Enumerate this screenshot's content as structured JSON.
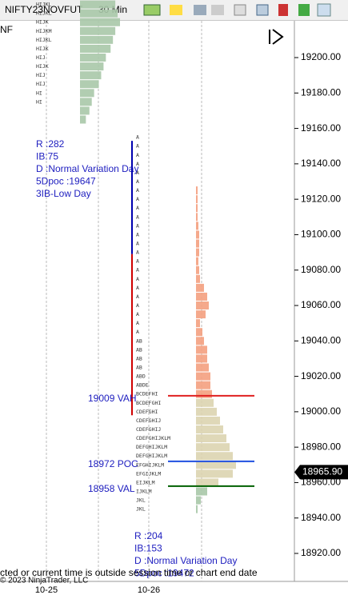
{
  "toolbar": {
    "instrument": "NIFTY23NOVFUT",
    "interval": "30 Min"
  },
  "chart_data": {
    "type": "market-profile",
    "corner_label": "NF",
    "ylim": [
      18900,
      19230
    ],
    "yticks": [
      {
        "value": 19200,
        "label": "19200.00"
      },
      {
        "value": 19180,
        "label": "19180.00"
      },
      {
        "value": 19160,
        "label": "19160.00"
      },
      {
        "value": 19140,
        "label": "19140.00"
      },
      {
        "value": 19120,
        "label": "19120.00"
      },
      {
        "value": 19100,
        "label": "19100.00"
      },
      {
        "value": 19080,
        "label": "19080.00"
      },
      {
        "value": 19060,
        "label": "19060.00"
      },
      {
        "value": 19040,
        "label": "19040.00"
      },
      {
        "value": 19020,
        "label": "19020.00"
      },
      {
        "value": 19000,
        "label": "19000.00"
      },
      {
        "value": 18980,
        "label": "18980.00"
      },
      {
        "value": 18960,
        "label": "18960.00"
      },
      {
        "value": 18940,
        "label": "18940.00"
      },
      {
        "value": 18920,
        "label": "18920.00"
      }
    ],
    "categories": [
      "10-25",
      "10-26"
    ],
    "last_price": {
      "value": 18965.9,
      "label": "18965.90"
    },
    "sessions": [
      {
        "tpo_prices": [
          19230,
          19225,
          19220,
          19215,
          19210,
          19205,
          19200,
          19195,
          19190,
          19185,
          19180,
          19175
        ],
        "tpo_letters": [
          "HIJKL",
          "HIJKL",
          "HIJK",
          "HIJKM",
          "HIJKL",
          "HIJK",
          "HIJ",
          "HIJK",
          "HIJ",
          "HIJ",
          "HI",
          "HI"
        ],
        "profile_prices": [
          19230,
          19225,
          19220,
          19215,
          19210,
          19205,
          19200,
          19195,
          19190,
          19185,
          19180,
          19175,
          19170,
          19165
        ],
        "profile_values": [
          30,
          32,
          34,
          30,
          28,
          26,
          22,
          20,
          18,
          16,
          12,
          10,
          8,
          5
        ],
        "notes": [
          "R :282",
          "IB:75",
          "D :Normal Variation Day",
          "5Dpoc :19647",
          "3IB-Low Day"
        ]
      },
      {
        "tpo_prices": [
          19155,
          19150,
          19145,
          19140,
          19135,
          19130,
          19125,
          19120,
          19115,
          19110,
          19105,
          19100,
          19095,
          19090,
          19085,
          19080,
          19075,
          19070,
          19065,
          19060,
          19055,
          19050,
          19045,
          19040,
          19035,
          19030,
          19025,
          19020,
          19015,
          19010,
          19005,
          19000,
          18995,
          18990,
          18985,
          18980,
          18975,
          18970,
          18965,
          18960,
          18955,
          18950,
          18945
        ],
        "tpo_letters": [
          "A",
          "A",
          "A",
          "A",
          "A",
          "A",
          "A",
          "A",
          "A",
          "A",
          "A",
          "A",
          "A",
          "A",
          "A",
          "A",
          "A",
          "A",
          "A",
          "A",
          "A",
          "A",
          "A",
          "AB",
          "AB",
          "AB",
          "AB",
          "ABD",
          "ABDE",
          "BCDEFHI",
          "BCDEFGHI",
          "CDEFGHI",
          "CDEFGHIJ",
          "CDEFGHIJ",
          "CDEFGHIJKLM",
          "DEFGHIJKLM",
          "DEFGHIJKLM",
          "EFGHIJKLM",
          "EFGIJKLM",
          "EIJKLM",
          "IJKLM",
          "JKL",
          "JKL"
        ],
        "ib_high": 19153,
        "ib_split": 19089,
        "ib_low": 18998,
        "profile_prices": [
          19125,
          19120,
          19115,
          19110,
          19105,
          19100,
          19095,
          19090,
          19085,
          19080,
          19075,
          19070,
          19065,
          19060,
          19055,
          19050,
          19045,
          19040,
          19035,
          19030,
          19025,
          19020,
          19015,
          19010,
          19005,
          19000,
          18995,
          18990,
          18985,
          18980,
          18975,
          18970,
          18965,
          18960,
          18955,
          18950,
          18945
        ],
        "profile_values": [
          2,
          2,
          2,
          2,
          3,
          4,
          4,
          4,
          3,
          4,
          5,
          10,
          14,
          16,
          12,
          5,
          8,
          10,
          14,
          14,
          16,
          18,
          18,
          20,
          22,
          26,
          30,
          34,
          38,
          42,
          46,
          50,
          46,
          28,
          14,
          6,
          2
        ],
        "levels": [
          {
            "name": "19009 VAH",
            "value": 19009,
            "color": "#e02020"
          },
          {
            "name": "18972 POC",
            "value": 18972,
            "color": "#2050e0"
          },
          {
            "name": "18958 VAL",
            "value": 18958,
            "color": "#006000"
          }
        ],
        "notes": [
          "R :204",
          "IB:153",
          "D :Normal Variation Day",
          "5Dpoc :19472"
        ]
      }
    ],
    "status": "cted or current time is outside session time or chart end date",
    "copyright": "© 2023 NinjaTrader, LLC"
  }
}
